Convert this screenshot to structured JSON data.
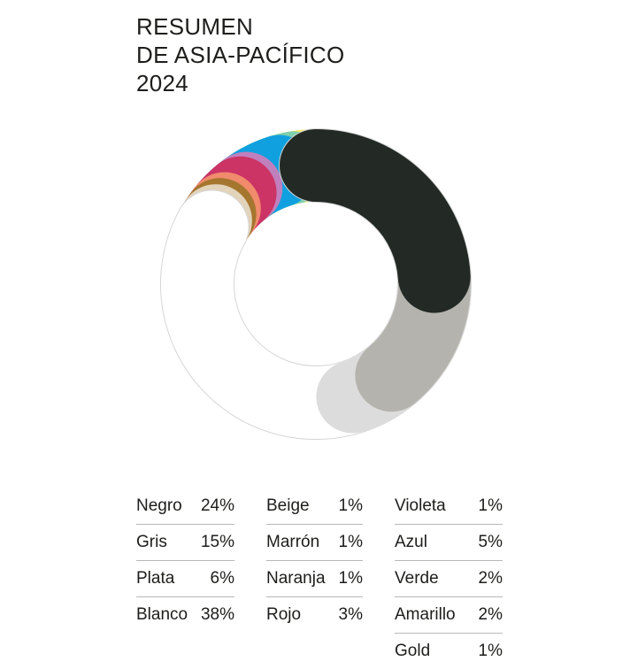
{
  "title": {
    "line1": "RESUMEN",
    "line2": "DE ASIA-PACÍFICO",
    "line3": "2024"
  },
  "chart_data": {
    "type": "pie",
    "variant": "donut",
    "segments": [
      {
        "label": "Negro",
        "value": 24,
        "display": "24%",
        "color": "#232a26"
      },
      {
        "label": "Gris",
        "value": 15,
        "display": "15%",
        "color": "#b5b3ad"
      },
      {
        "label": "Plata",
        "value": 6,
        "display": "6%",
        "color": "#dcdcdc"
      },
      {
        "label": "Blanco",
        "value": 38,
        "display": "38%",
        "color": "#ffffff",
        "stroke": "#d6d6d6"
      },
      {
        "label": "Beige",
        "value": 1,
        "display": "1%",
        "color": "#e2d3bb"
      },
      {
        "label": "Marrón",
        "value": 1,
        "display": "1%",
        "color": "#a5762e"
      },
      {
        "label": "Naranja",
        "value": 1,
        "display": "1%",
        "color": "#f08b6c"
      },
      {
        "label": "Rojo",
        "value": 3,
        "display": "3%",
        "color": "#cc3466"
      },
      {
        "label": "Violeta",
        "value": 1,
        "display": "1%",
        "color": "#c080bd"
      },
      {
        "label": "Azul",
        "value": 5,
        "display": "5%",
        "color": "#10a0e0"
      },
      {
        "label": "Verde",
        "value": 2,
        "display": "2%",
        "color": "#7fcfae"
      },
      {
        "label": "Amarillo",
        "value": 2,
        "display": "2%",
        "color": "#fbea59"
      },
      {
        "label": "Gold",
        "value": 1,
        "display": "1%",
        "color": "#d6a630"
      }
    ],
    "draw_order": [
      "Gold",
      "Amarillo",
      "Verde",
      "Azul",
      "Violeta",
      "Rojo",
      "Naranja",
      "Marrón",
      "Beige",
      "Blanco",
      "Plata",
      "Gris",
      "Negro"
    ],
    "legend": {
      "placement": "bottom",
      "columns": [
        [
          "Negro",
          "Gris",
          "Plata",
          "Blanco"
        ],
        [
          "Beige",
          "Marrón",
          "Naranja",
          "Rojo"
        ],
        [
          "Violeta",
          "Azul",
          "Verde",
          "Amarillo",
          "Gold"
        ]
      ]
    }
  }
}
